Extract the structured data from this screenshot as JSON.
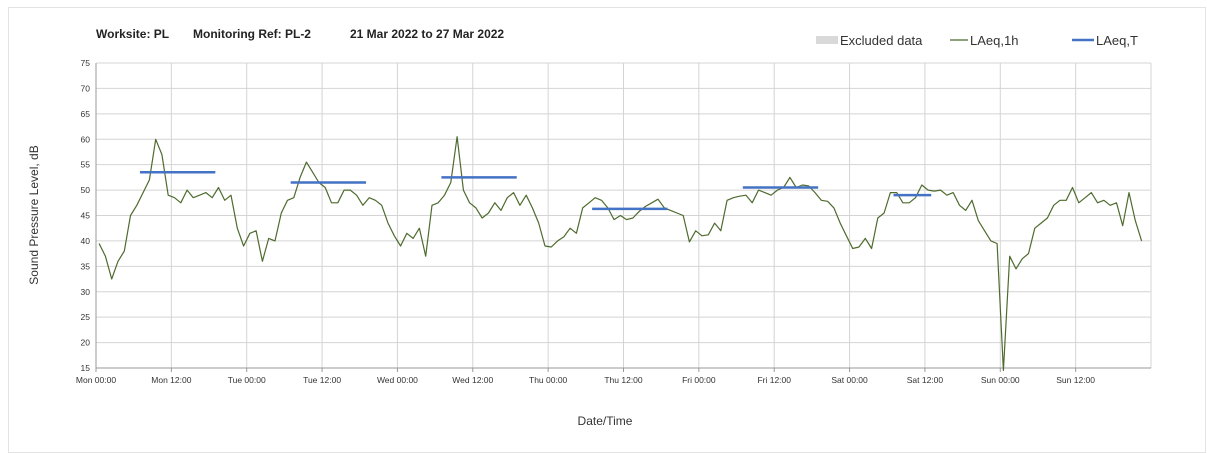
{
  "header": {
    "worksite": "Worksite: PL",
    "monitoring_ref": "Monitoring Ref: PL-2",
    "date_range": "21 Mar 2022 to 27 Mar 2022"
  },
  "legend": [
    {
      "label": "Excluded data",
      "color": "#d9d9d9",
      "kind": "swatch"
    },
    {
      "label": "LAeq,1h",
      "color": "#4e6b2e",
      "kind": "line"
    },
    {
      "label": "LAeq,T",
      "color": "#4472c4",
      "kind": "line"
    }
  ],
  "chart_data": {
    "type": "line",
    "ylabel": "Sound Pressure Level, dB",
    "xlabel": "Date/Time",
    "ylim": [
      15,
      75
    ],
    "yticks": [
      15,
      20,
      25,
      30,
      35,
      40,
      45,
      50,
      55,
      60,
      65,
      70,
      75
    ],
    "xlim_hours": [
      0,
      168
    ],
    "xticks": [
      {
        "hour": 0,
        "label": "Mon 00:00"
      },
      {
        "hour": 12,
        "label": "Mon 12:00"
      },
      {
        "hour": 24,
        "label": "Tue 00:00"
      },
      {
        "hour": 36,
        "label": "Tue 12:00"
      },
      {
        "hour": 48,
        "label": "Wed 00:00"
      },
      {
        "hour": 60,
        "label": "Wed 12:00"
      },
      {
        "hour": 72,
        "label": "Thu 00:00"
      },
      {
        "hour": 84,
        "label": "Thu 12:00"
      },
      {
        "hour": 96,
        "label": "Fri 00:00"
      },
      {
        "hour": 108,
        "label": "Fri 12:00"
      },
      {
        "hour": 120,
        "label": "Sat 00:00"
      },
      {
        "hour": 132,
        "label": "Sat 12:00"
      },
      {
        "hour": 144,
        "label": "Sun 00:00"
      },
      {
        "hour": 156,
        "label": "Sun 12:00"
      }
    ],
    "grid": true,
    "legend_position": "top-right",
    "series": [
      {
        "name": "LAeq,1h",
        "color": "#4e6b2e",
        "values": [
          39.5,
          37,
          32.5,
          36,
          38,
          45,
          47,
          49.5,
          52,
          60,
          57,
          49,
          48.5,
          47.5,
          50,
          48.5,
          49,
          49.5,
          48.5,
          50.5,
          48,
          49,
          42.5,
          39,
          41.5,
          42,
          36,
          40.5,
          40,
          45.5,
          48,
          48.5,
          52.5,
          55.5,
          53.5,
          51.5,
          50.5,
          47.5,
          47.5,
          50,
          50,
          49,
          47,
          48.5,
          48,
          47,
          43.5,
          41,
          39,
          41.5,
          40.5,
          42.5,
          37,
          47,
          47.5,
          49,
          51.5,
          60.5,
          50,
          47.5,
          46.5,
          44.5,
          45.5,
          47.5,
          46,
          48.5,
          49.5,
          47,
          49,
          46.5,
          43.5,
          39,
          38.8,
          40,
          40.8,
          42.5,
          41.5,
          46.5,
          47.5,
          48.5,
          48,
          46.5,
          44.2,
          45,
          44.2,
          44.5,
          45.8,
          46.8,
          47.5,
          48.2,
          46.5,
          46,
          45.5,
          45,
          39.8,
          42,
          41,
          41.2,
          43.5,
          42,
          48,
          48.5,
          48.8,
          49,
          47.5,
          50,
          49.5,
          49,
          50,
          50.5,
          52.5,
          50.5,
          51,
          50.8,
          49.5,
          48,
          47.8,
          46.5,
          43.5,
          41,
          38.5,
          38.8,
          40.5,
          38.5,
          44.5,
          45.5,
          49.5,
          49.5,
          47.5,
          47.5,
          48.5,
          51,
          50,
          49.8,
          50,
          49,
          49.5,
          47,
          46,
          48,
          44,
          42,
          40,
          39.5,
          14.5,
          37,
          34.5,
          36.5,
          37.5,
          42.5,
          43.5,
          44.5,
          47,
          48,
          48,
          50.5,
          47.5,
          48.5,
          49.5,
          47.5,
          48,
          47,
          47.5,
          43,
          49.5,
          44,
          40
        ]
      },
      {
        "name": "LAeq,T",
        "color": "#4472c4",
        "segments": [
          {
            "x": [
              7,
              19
            ],
            "y": 53.5
          },
          {
            "x": [
              31,
              43
            ],
            "y": 51.5
          },
          {
            "x": [
              55,
              67
            ],
            "y": 52.5
          },
          {
            "x": [
              79,
              91
            ],
            "y": 46.3
          },
          {
            "x": [
              103,
              115
            ],
            "y": 50.5
          },
          {
            "x": [
              127,
              133
            ],
            "y": 49.0
          }
        ]
      }
    ],
    "excluded_data": []
  }
}
